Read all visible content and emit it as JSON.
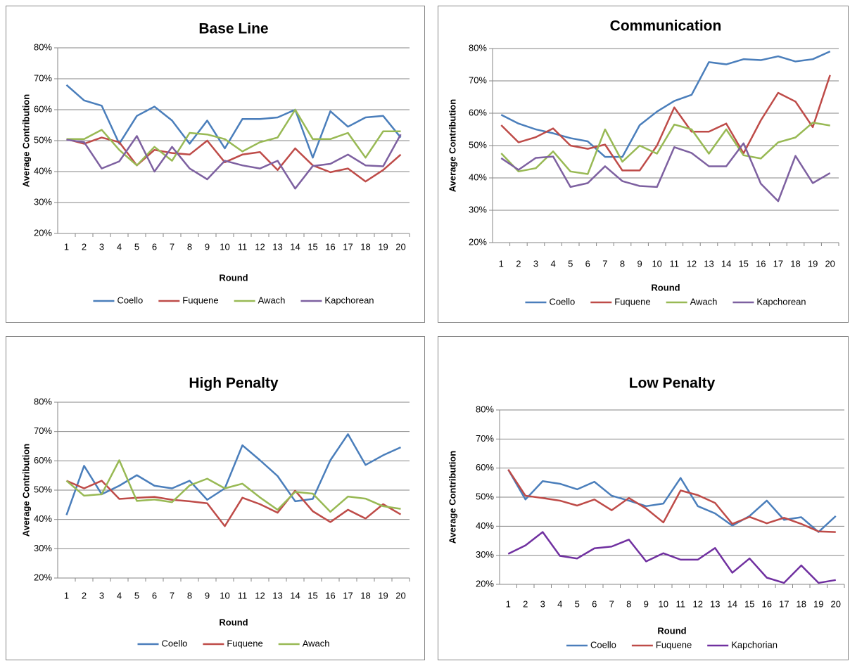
{
  "chart_data": [
    {
      "type": "line",
      "title": "Base Line",
      "x_label": "Round",
      "y_label": "Average Contribution",
      "categories": [
        "1",
        "2",
        "3",
        "4",
        "5",
        "6",
        "7",
        "8",
        "9",
        "10",
        "11",
        "12",
        "13",
        "14",
        "15",
        "16",
        "17",
        "18",
        "19",
        "20"
      ],
      "ylim": [
        20,
        80
      ],
      "yticks": [
        {
          "value": 20,
          "label": "20%"
        },
        {
          "value": 30,
          "label": "30%"
        },
        {
          "value": 40,
          "label": "40%"
        },
        {
          "value": 50,
          "label": "50%"
        },
        {
          "value": 60,
          "label": "60%"
        },
        {
          "value": 70,
          "label": "70%"
        },
        {
          "value": 80,
          "label": "80%"
        }
      ],
      "grid": true,
      "legend": "bottom",
      "series": [
        {
          "name": "Coello",
          "color": "#4a7ebb",
          "values": [
            68,
            63,
            61.3,
            49,
            58,
            61,
            56.5,
            49,
            56.5,
            47.5,
            57,
            57,
            57.5,
            60,
            44.5,
            59.5,
            54.5,
            57.5,
            58,
            51
          ]
        },
        {
          "name": "Fuquene",
          "color": "#be4b48",
          "values": [
            50.5,
            49,
            51,
            49.5,
            42,
            47,
            46,
            45.5,
            50,
            43,
            45.5,
            46.3,
            40.5,
            47.5,
            42,
            39.8,
            41,
            36.8,
            40.5,
            45.5
          ]
        },
        {
          "name": "Awach",
          "color": "#98b954",
          "values": [
            50.5,
            50.5,
            53.5,
            47,
            42,
            48,
            43.5,
            52.5,
            52,
            50.5,
            46.5,
            49.5,
            51,
            60,
            50.5,
            50.5,
            52.5,
            44.5,
            53,
            53
          ]
        },
        {
          "name": "Kapchorean",
          "color": "#7d60a0",
          "values": [
            50.3,
            49.5,
            41,
            43.3,
            51.5,
            40,
            48,
            41,
            37.5,
            43.5,
            42,
            41,
            43.5,
            34.5,
            41.8,
            42.5,
            45.5,
            42,
            41.7,
            52
          ]
        }
      ]
    },
    {
      "type": "line",
      "title": "Communication",
      "x_label": "Round",
      "y_label": "Average Contribution",
      "categories": [
        "1",
        "2",
        "3",
        "4",
        "5",
        "6",
        "7",
        "8",
        "9",
        "10",
        "11",
        "12",
        "13",
        "14",
        "15",
        "16",
        "17",
        "18",
        "19",
        "20"
      ],
      "ylim": [
        20,
        80
      ],
      "yticks": [
        {
          "value": 20,
          "label": "20%"
        },
        {
          "value": 30,
          "label": "30%"
        },
        {
          "value": 40,
          "label": "40%"
        },
        {
          "value": 50,
          "label": "50%"
        },
        {
          "value": 60,
          "label": "60%"
        },
        {
          "value": 70,
          "label": "70%"
        },
        {
          "value": 80,
          "label": "80%"
        }
      ],
      "grid": true,
      "legend": "bottom",
      "series": [
        {
          "name": "Coello",
          "color": "#4a7ebb",
          "values": [
            59.5,
            56.8,
            55,
            53.8,
            52.3,
            51.3,
            46.5,
            46.5,
            56.3,
            60.5,
            63.8,
            65.7,
            75.8,
            75.1,
            76.7,
            76.4,
            77.6,
            76,
            76.7,
            79.1
          ]
        },
        {
          "name": "Fuquene",
          "color": "#be4b48",
          "values": [
            56.3,
            51,
            52.6,
            55.3,
            50,
            49,
            50.3,
            42.3,
            42.3,
            50,
            61.8,
            54.3,
            54.3,
            56.8,
            47.6,
            57.8,
            66.3,
            63.6,
            55.7,
            71.8
          ]
        },
        {
          "name": "Awach",
          "color": "#98b954",
          "values": [
            47.6,
            42,
            43,
            48.2,
            42,
            41.2,
            55,
            45,
            50,
            47.5,
            56.5,
            55,
            47.5,
            55,
            47,
            46,
            51,
            52.5,
            57.1,
            56.2
          ]
        },
        {
          "name": "Kapchorean",
          "color": "#7d60a0",
          "values": [
            46.1,
            42.5,
            46.2,
            46.6,
            37.2,
            38.4,
            43.6,
            39,
            37.5,
            37.2,
            49.5,
            47.7,
            43.6,
            43.6,
            50.7,
            38.2,
            32.8,
            46.8,
            38.4,
            41.5
          ]
        }
      ]
    },
    {
      "type": "line",
      "title": "High Penalty",
      "x_label": "Round",
      "y_label": "Average Contribution",
      "categories": [
        "1",
        "2",
        "3",
        "4",
        "5",
        "6",
        "7",
        "8",
        "9",
        "10",
        "11",
        "12",
        "13",
        "14",
        "15",
        "16",
        "17",
        "18",
        "19",
        "20"
      ],
      "ylim": [
        20,
        80
      ],
      "yticks": [
        {
          "value": 20,
          "label": "20%"
        },
        {
          "value": 30,
          "label": "30%"
        },
        {
          "value": 40,
          "label": "40%"
        },
        {
          "value": 50,
          "label": "50%"
        },
        {
          "value": 60,
          "label": "60%"
        },
        {
          "value": 70,
          "label": "70%"
        },
        {
          "value": 80,
          "label": "80%"
        }
      ],
      "grid": true,
      "legend": "bottom",
      "series": [
        {
          "name": "Coello",
          "color": "#4a7ebb",
          "values": [
            41.5,
            58.3,
            48.6,
            51.5,
            55.1,
            51.5,
            50.6,
            53.2,
            46.7,
            50.6,
            65.3,
            60.2,
            54.8,
            46.2,
            47,
            60.2,
            69.1,
            58.6,
            61.9,
            64.6
          ]
        },
        {
          "name": "Fuquene",
          "color": "#be4b48",
          "values": [
            53.2,
            50.6,
            53.2,
            47,
            47.4,
            47.7,
            46.7,
            46.2,
            45.5,
            37.7,
            47.4,
            45.2,
            42.3,
            49.8,
            42.8,
            39.1,
            43.3,
            40.3,
            45.2,
            41.7
          ]
        },
        {
          "name": "Awach",
          "color": "#98b954",
          "values": [
            53.2,
            48.1,
            48.6,
            60.2,
            46.3,
            46.8,
            45.9,
            51.6,
            53.9,
            50.6,
            52.2,
            47.5,
            43.3,
            49.4,
            48.8,
            42.6,
            47.8,
            47.1,
            44.5,
            43.6
          ]
        }
      ]
    },
    {
      "type": "line",
      "title": "Low Penalty",
      "x_label": "Round",
      "y_label": "Average Contribution",
      "categories": [
        "1",
        "2",
        "3",
        "4",
        "5",
        "6",
        "7",
        "8",
        "9",
        "10",
        "11",
        "12",
        "13",
        "14",
        "15",
        "16",
        "17",
        "18",
        "19",
        "20"
      ],
      "ylim": [
        20,
        80
      ],
      "yticks": [
        {
          "value": 20,
          "label": "20%"
        },
        {
          "value": 30,
          "label": "30%"
        },
        {
          "value": 40,
          "label": "40%"
        },
        {
          "value": 50,
          "label": "50%"
        },
        {
          "value": 60,
          "label": "60%"
        },
        {
          "value": 70,
          "label": "70%"
        },
        {
          "value": 80,
          "label": "80%"
        }
      ],
      "grid": true,
      "legend": "bottom",
      "series": [
        {
          "name": "Coello",
          "color": "#4a7ebb",
          "values": [
            59.5,
            49.2,
            55.5,
            54.6,
            52.7,
            55.3,
            50.5,
            48.8,
            46.9,
            47.8,
            56.6,
            46.9,
            44.4,
            40.2,
            43.5,
            48.8,
            42.2,
            43.1,
            38,
            43.5
          ]
        },
        {
          "name": "Fuquene",
          "color": "#be4b48",
          "values": [
            59.5,
            50.5,
            49.7,
            48.8,
            47.1,
            49.2,
            45.5,
            49.7,
            46.1,
            41.3,
            52.3,
            50.7,
            48,
            40.8,
            43.2,
            41,
            42.9,
            40.8,
            38.2,
            38
          ]
        },
        {
          "name": "Kapchorian",
          "color": "#7030a0",
          "values": [
            30.5,
            33.4,
            38,
            29.8,
            28.9,
            32.4,
            33,
            35.4,
            27.9,
            30.7,
            28.5,
            28.5,
            32.5,
            24,
            28.9,
            22.3,
            20.5,
            26.5,
            20.5,
            21.5
          ]
        }
      ]
    }
  ]
}
